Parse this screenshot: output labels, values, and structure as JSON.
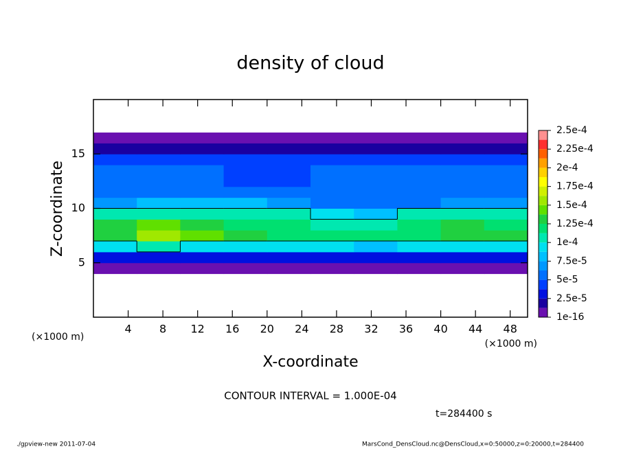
{
  "chart_data": {
    "type": "heatmap",
    "title": "density of cloud",
    "x_label": "X-coordinate",
    "y_label": "Z-coordinate",
    "x_unit_label": "(×1000 m)",
    "y_unit_label": "(×1000 m)",
    "annotation": "CONTOUR INTERVAL = 1.000E-04",
    "time_label": "t=284400 s",
    "footer_left": "./gpview-new  2011-07-04",
    "footer_right": "MarsCond_DensCloud.nc@DensCloud,x=0:50000,z=0:20000,t=284400",
    "xlim": [
      0,
      50
    ],
    "xticks": [
      4,
      8,
      12,
      16,
      20,
      24,
      28,
      32,
      36,
      40,
      44,
      48
    ],
    "ylim": [
      0,
      20
    ],
    "yticks": [
      5,
      10,
      15
    ],
    "x": [
      2.5,
      7.5,
      12.5,
      17.5,
      22.5,
      27.5,
      32.5,
      37.5,
      42.5,
      47.5
    ],
    "z": [
      0.5,
      1.5,
      2.5,
      3.5,
      4.5,
      5.5,
      6.5,
      7.5,
      8.5,
      9.5,
      10.5,
      11.5,
      12.5,
      13.5,
      14.5,
      15.5,
      16.5,
      17.5,
      18.5,
      19.5
    ],
    "values": [
      [
        0,
        0,
        0,
        0,
        0,
        0,
        0,
        0,
        0,
        0
      ],
      [
        0,
        0,
        0,
        0,
        0,
        0,
        0,
        0,
        0,
        0
      ],
      [
        0,
        0,
        0,
        0,
        0,
        0,
        0,
        0,
        0,
        0
      ],
      [
        0,
        0,
        0,
        0,
        0,
        0,
        0,
        0,
        0,
        0
      ],
      [
        5e-06,
        5e-06,
        5e-06,
        5e-06,
        5e-06,
        5e-06,
        5e-06,
        5e-06,
        5e-06,
        5e-06
      ],
      [
        3e-05,
        3e-05,
        3e-05,
        3e-05,
        3e-05,
        3e-05,
        3e-05,
        3e-05,
        3e-05,
        3e-05
      ],
      [
        9e-05,
        0.0001,
        9.5e-05,
        9e-05,
        9e-05,
        9e-05,
        8.5e-05,
        9e-05,
        9.5e-05,
        9.5e-05
      ],
      [
        0.00013,
        0.00015,
        0.00014,
        0.00013,
        0.00012,
        0.00012,
        0.000115,
        0.00012,
        0.00013,
        0.000125
      ],
      [
        0.00013,
        0.00014,
        0.000135,
        0.00012,
        0.000115,
        0.00011,
        0.000105,
        0.000115,
        0.000125,
        0.00012
      ],
      [
        0.000105,
        0.00011,
        0.00011,
        0.000105,
        0.0001,
        9e-05,
        8e-05,
        0.000105,
        0.00011,
        0.000105
      ],
      [
        7e-05,
        8e-05,
        8e-05,
        8e-05,
        7e-05,
        6e-05,
        5e-05,
        6e-05,
        7e-05,
        7e-05
      ],
      [
        6e-05,
        6e-05,
        6e-05,
        5.5e-05,
        5e-05,
        5e-05,
        6e-05,
        6e-05,
        6e-05,
        6e-05
      ],
      [
        5e-05,
        6e-05,
        5e-05,
        4e-05,
        4e-05,
        5e-05,
        6e-05,
        6e-05,
        5e-05,
        5e-05
      ],
      [
        5e-05,
        5e-05,
        5e-05,
        4e-05,
        4.5e-05,
        5e-05,
        5e-05,
        5e-05,
        5e-05,
        5e-05
      ],
      [
        4.5e-05,
        4.5e-05,
        4.5e-05,
        4.5e-05,
        4.5e-05,
        4.5e-05,
        4.5e-05,
        4.5e-05,
        4.5e-05,
        4.5e-05
      ],
      [
        2e-05,
        2e-05,
        2e-05,
        2e-05,
        2e-05,
        2e-05,
        2e-05,
        2e-05,
        2e-05,
        2e-05
      ],
      [
        5e-06,
        5e-06,
        5e-06,
        5e-06,
        5e-06,
        5e-06,
        5e-06,
        5e-06,
        5e-06,
        5e-06
      ],
      [
        0,
        0,
        0,
        0,
        0,
        0,
        0,
        0,
        0,
        0
      ],
      [
        0,
        0,
        0,
        0,
        0,
        0,
        0,
        0,
        0,
        0
      ],
      [
        0,
        0,
        0,
        0,
        0,
        0,
        0,
        0,
        0,
        0
      ]
    ],
    "levels": [
      1e-16,
      1.25e-05,
      2.5e-05,
      3.75e-05,
      5e-05,
      6.25e-05,
      7.5e-05,
      8.75e-05,
      0.0001,
      0.0001125,
      0.000125,
      0.0001375,
      0.00015,
      0.0001625,
      0.000175,
      0.0001875,
      0.0002,
      0.0002125,
      0.000225,
      0.0002375,
      0.00025
    ],
    "colors": [
      "#6a10b0",
      "#1a00a0",
      "#0010e0",
      "#0040ff",
      "#0070ff",
      "#0098ff",
      "#00c0ff",
      "#00e0f0",
      "#00e8b0",
      "#00e070",
      "#20d040",
      "#60e000",
      "#a0e800",
      "#d0f000",
      "#ffff00",
      "#ffd000",
      "#ffa000",
      "#ff6000",
      "#ff3030",
      "#ff9090"
    ],
    "colorbar_ticks": [
      {
        "value": 1e-16,
        "label": "1e-16"
      },
      {
        "value": 2.5e-05,
        "label": "2.5e-5"
      },
      {
        "value": 5e-05,
        "label": "5e-5"
      },
      {
        "value": 7.5e-05,
        "label": "7.5e-5"
      },
      {
        "value": 0.0001,
        "label": "1e-4"
      },
      {
        "value": 0.000125,
        "label": "1.25e-4"
      },
      {
        "value": 0.00015,
        "label": "1.5e-4"
      },
      {
        "value": 0.000175,
        "label": "1.75e-4"
      },
      {
        "value": 0.0002,
        "label": "2e-4"
      },
      {
        "value": 0.000225,
        "label": "2.25e-4"
      },
      {
        "value": 0.00025,
        "label": "2.5e-4"
      }
    ],
    "contour_levels": [
      0.0001
    ]
  }
}
